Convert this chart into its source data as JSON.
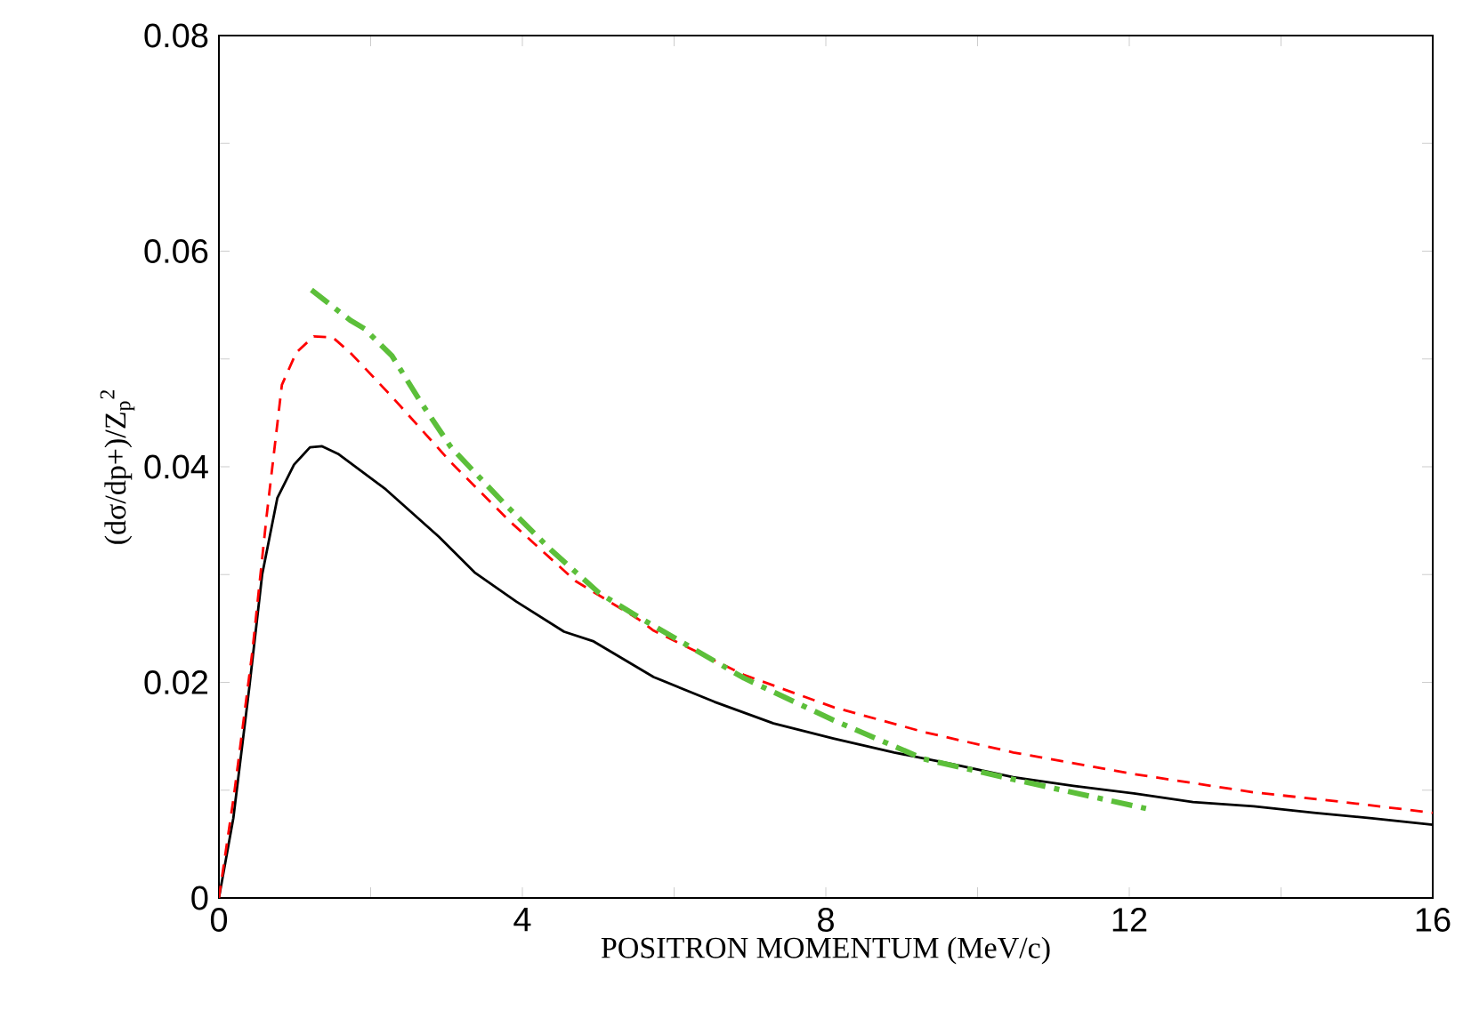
{
  "chart_data": {
    "type": "line",
    "xlabel": "POSITRON MOMENTUM (MeV/c)",
    "ylabel": "(dσ/dp+)/Z$_{p}$$^{2}$",
    "xlim": [
      0,
      16
    ],
    "ylim": [
      0,
      0.08
    ],
    "xticks": [
      0,
      {
        "value": 2,
        "label": null
      },
      4,
      {
        "value": 6,
        "label": null
      },
      8,
      {
        "value": 10,
        "label": null
      },
      12,
      {
        "value": 14,
        "label": null
      },
      16
    ],
    "yticks": [
      0,
      {
        "value": 0.01,
        "label": null
      },
      0.02,
      {
        "value": 0.03,
        "label": null
      },
      0.04,
      {
        "value": 0.05,
        "label": null
      },
      0.06,
      {
        "value": 0.07,
        "label": null
      },
      0.08
    ],
    "series": [
      {
        "color": "#000000",
        "line_style": "solid",
        "x": [
          0,
          0.19,
          0.4,
          0.57,
          0.77,
          0.99,
          1.2,
          1.36,
          1.57,
          2.2,
          2.9,
          3.37,
          3.92,
          4.55,
          4.94,
          5.73,
          6.53,
          7.31,
          8.1,
          8.9,
          9.68,
          10.47,
          11.26,
          12.06,
          12.84,
          13.64,
          14.43,
          15.2,
          16
        ],
        "values": [
          0,
          0.0074,
          0.0195,
          0.03,
          0.0371,
          0.0402,
          0.0418,
          0.0419,
          0.0412,
          0.0379,
          0.0335,
          0.0302,
          0.0275,
          0.0247,
          0.0238,
          0.0205,
          0.0182,
          0.0162,
          0.0148,
          0.0135,
          0.0124,
          0.0112,
          0.0104,
          0.0097,
          0.0089,
          0.0085,
          0.0079,
          0.0074,
          0.0068
        ]
      },
      {
        "color": "#ff0000",
        "line_style": "dashed",
        "x": [
          0,
          0.2,
          0.44,
          0.63,
          0.83,
          1.02,
          1.25,
          1.5,
          1.73,
          2.28,
          3.06,
          3.84,
          4.7,
          5.52,
          5.73,
          6.92,
          8.1,
          9.29,
          10.47,
          12.06,
          13.64,
          14.82,
          16
        ],
        "values": [
          0,
          0.0096,
          0.0228,
          0.0355,
          0.0476,
          0.0506,
          0.0521,
          0.052,
          0.0506,
          0.0465,
          0.0404,
          0.0349,
          0.0294,
          0.0259,
          0.0248,
          0.0207,
          0.0177,
          0.0154,
          0.0135,
          0.0115,
          0.0098,
          0.0089,
          0.0079
        ]
      },
      {
        "color": "#5cbf3a",
        "line_style": "dashdot",
        "x": [
          1.22,
          1.73,
          1.92,
          2.28,
          2.67,
          3.06,
          3.76,
          4.39,
          5.01,
          5.52,
          6.92,
          8.1,
          9.29,
          10.47,
          12.22
        ],
        "values": [
          0.0564,
          0.0536,
          0.0528,
          0.0503,
          0.0459,
          0.0418,
          0.0366,
          0.0322,
          0.0283,
          0.0261,
          0.0204,
          0.0165,
          0.0129,
          0.011,
          0.0083
        ]
      }
    ]
  }
}
